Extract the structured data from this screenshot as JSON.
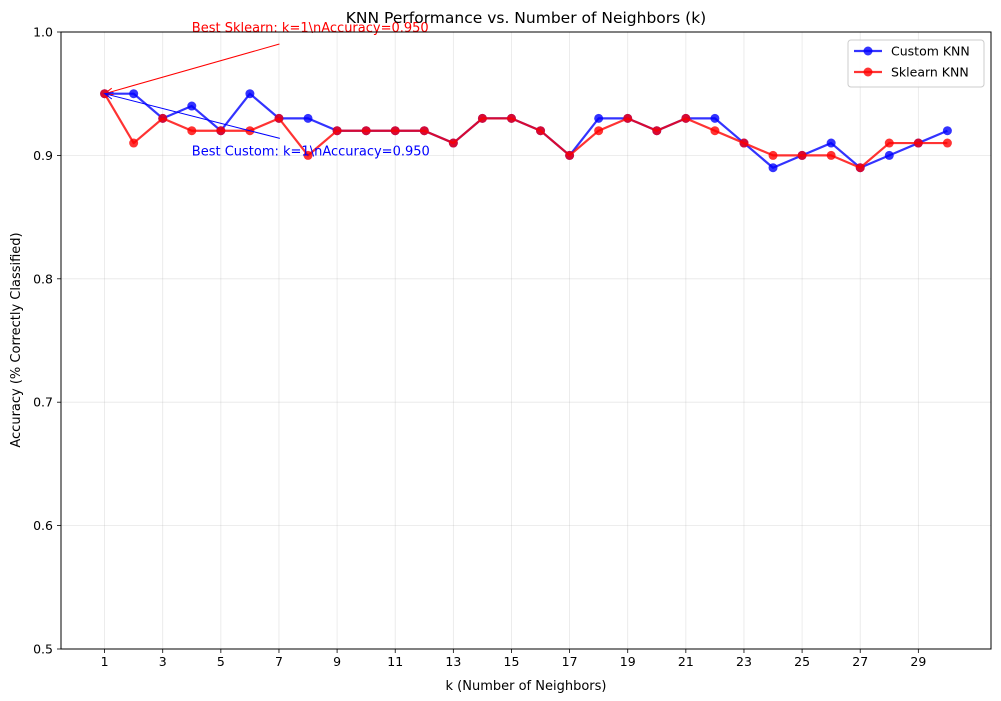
{
  "chart_data": {
    "type": "line",
    "title": "KNN Performance vs. Number of Neighbors (k)",
    "xlabel": "k (Number of Neighbors)",
    "ylabel": "Accuracy (% Correctly Classified)",
    "xlim": [
      -0.5,
      31.5
    ],
    "ylim": [
      0.5,
      1.0
    ],
    "xticks": [
      1,
      3,
      5,
      7,
      9,
      11,
      13,
      15,
      17,
      19,
      21,
      23,
      25,
      27,
      29
    ],
    "xtick_labels": [
      "1",
      "3",
      "5",
      "7",
      "9",
      "11",
      "13",
      "15",
      "17",
      "19",
      "21",
      "23",
      "25",
      "27",
      "29"
    ],
    "yticks": [
      0.5,
      0.6,
      0.7,
      0.8,
      0.9,
      1.0
    ],
    "ytick_labels": [
      "0.5",
      "0.6",
      "0.7",
      "0.8",
      "0.9",
      "1.0"
    ],
    "grid": true,
    "legend_position": "top-right",
    "x": [
      1,
      2,
      3,
      4,
      5,
      6,
      7,
      8,
      9,
      10,
      11,
      12,
      13,
      14,
      15,
      16,
      17,
      18,
      19,
      20,
      21,
      22,
      23,
      24,
      25,
      26,
      27,
      28,
      29,
      30
    ],
    "series": [
      {
        "name": "Custom KNN",
        "color": "#0000ff",
        "values": [
          0.95,
          0.95,
          0.93,
          0.94,
          0.92,
          0.95,
          0.93,
          0.93,
          0.92,
          0.92,
          0.92,
          0.92,
          0.91,
          0.93,
          0.93,
          0.92,
          0.9,
          0.93,
          0.93,
          0.92,
          0.93,
          0.93,
          0.91,
          0.89,
          0.9,
          0.91,
          0.89,
          0.9,
          0.91,
          0.92
        ]
      },
      {
        "name": "Sklearn KNN",
        "color": "#ff0000",
        "values": [
          0.95,
          0.91,
          0.93,
          0.92,
          0.92,
          0.92,
          0.93,
          0.9,
          0.92,
          0.92,
          0.92,
          0.92,
          0.91,
          0.93,
          0.93,
          0.92,
          0.9,
          0.92,
          0.93,
          0.92,
          0.93,
          0.92,
          0.91,
          0.9,
          0.9,
          0.9,
          0.89,
          0.91,
          0.91,
          0.91
        ]
      }
    ],
    "annotations": [
      {
        "text": "Best Sklearn: k=1\\nAccuracy=0.950",
        "color": "#ff0000",
        "point": [
          1,
          0.95
        ],
        "text_at": [
          4,
          1.0
        ]
      },
      {
        "text": "Best Custom: k=1\\nAccuracy=0.950",
        "color": "#0000ff",
        "point": [
          1,
          0.95
        ],
        "text_at": [
          4,
          0.9
        ]
      }
    ]
  }
}
